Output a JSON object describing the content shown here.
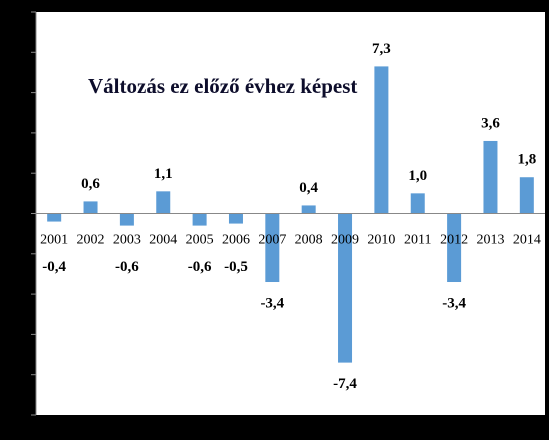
{
  "chart_data": {
    "type": "bar",
    "title": "Változás  ez előző évhez képest",
    "categories": [
      "2001",
      "2002",
      "2003",
      "2004",
      "2005",
      "2006",
      "2007",
      "2008",
      "2009",
      "2010",
      "2011",
      "2012",
      "2013",
      "2014"
    ],
    "values": [
      -0.4,
      0.6,
      -0.6,
      1.1,
      -0.6,
      -0.5,
      -3.4,
      0.4,
      -7.4,
      7.3,
      1.0,
      -3.4,
      3.6,
      1.8
    ],
    "value_labels": [
      "-0,4",
      "0,6",
      "-0,6",
      "1,1",
      "-0,6",
      "-0,5",
      "-3,4",
      "0,4",
      "-7,4",
      "7,3",
      "1,0",
      "-3,4",
      "3,6",
      "1,8"
    ],
    "color": "#5b9bd5",
    "ylim": [
      -10,
      10
    ],
    "yticks": [
      -10,
      -8,
      -6,
      -4,
      -2,
      0,
      2,
      4,
      6,
      8,
      10
    ]
  }
}
